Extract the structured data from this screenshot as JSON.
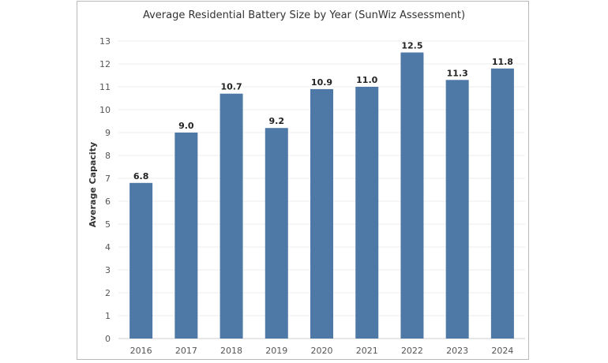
{
  "chart_data": {
    "type": "bar",
    "title": "Average Residential Battery Size by Year (SunWiz Assessment)",
    "xlabel": "",
    "ylabel": "Average Capacity",
    "categories": [
      "2016",
      "2017",
      "2018",
      "2019",
      "2020",
      "2021",
      "2022",
      "2023",
      "2024"
    ],
    "values": [
      6.8,
      9.0,
      10.7,
      9.2,
      10.9,
      11.0,
      12.5,
      11.3,
      11.8
    ],
    "data_labels": [
      "6.8",
      "9.0",
      "10.7",
      "9.2",
      "10.9",
      "11.0",
      "12.5",
      "11.3",
      "11.8"
    ],
    "ylim": [
      0,
      13
    ],
    "yticks": [
      "0",
      "1",
      "2",
      "3",
      "4",
      "5",
      "6",
      "7",
      "8",
      "9",
      "10",
      "11",
      "12",
      "13"
    ],
    "grid": true,
    "bar_color": "#4e79a7"
  }
}
